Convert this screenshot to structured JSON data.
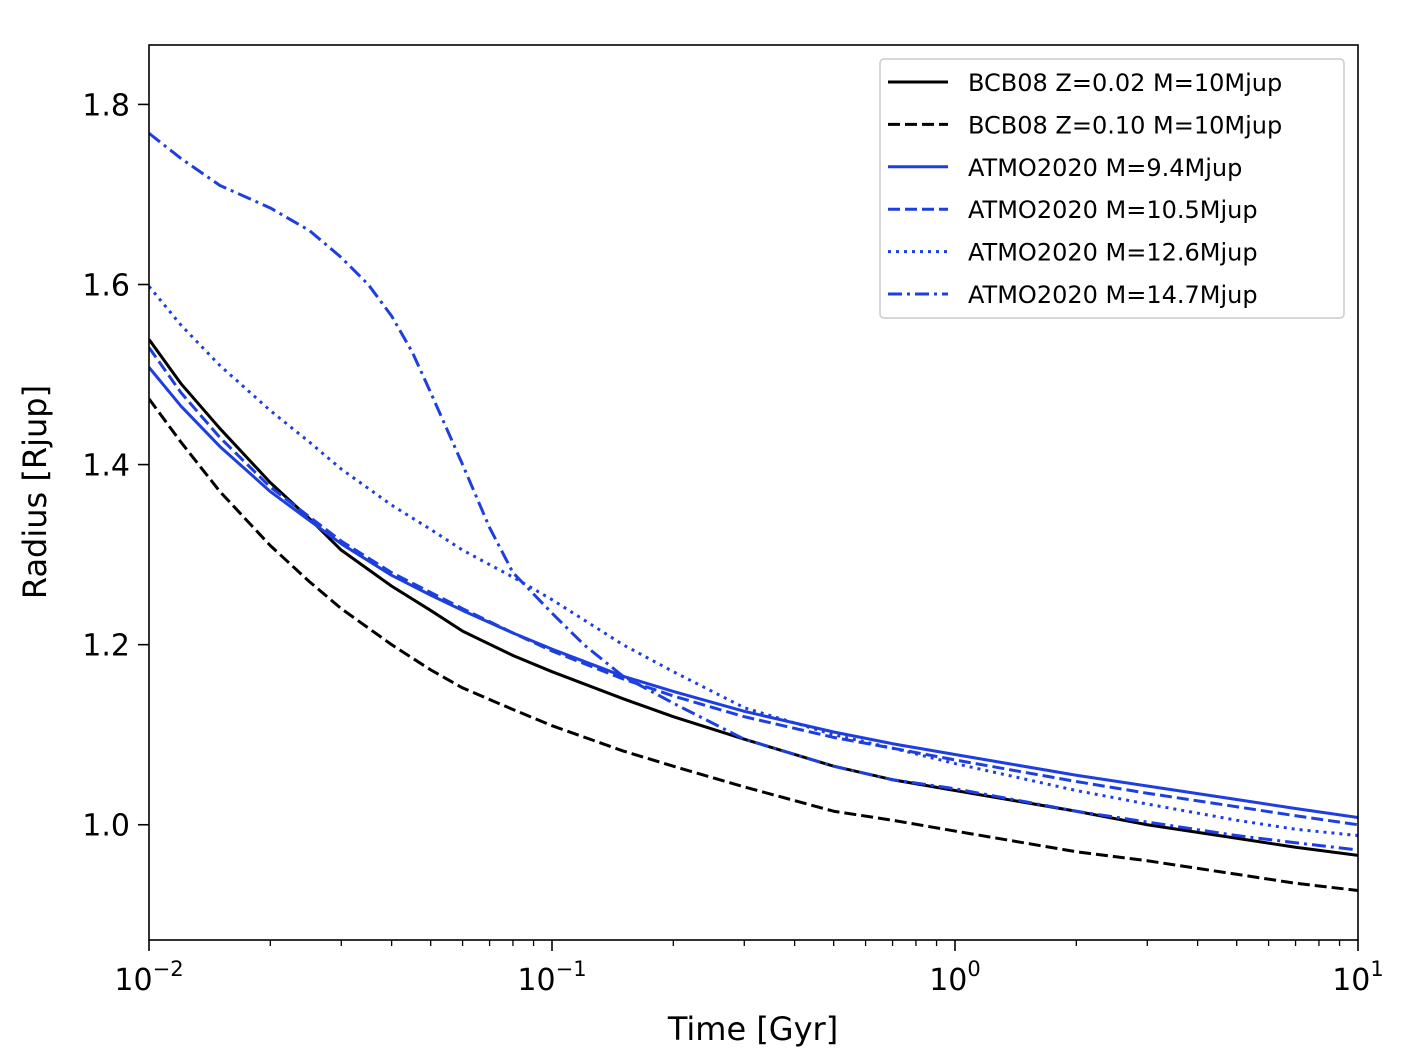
{
  "chart_data": {
    "type": "line",
    "title": "",
    "xlabel": "Time [Gyr]",
    "ylabel": "Radius [Rjup]",
    "xscale": "log",
    "xlim": [
      0.01,
      10
    ],
    "ylim": [
      0.872,
      1.866
    ],
    "grid": false,
    "legend_position": "top-right",
    "x_ticks": [
      {
        "value": 0.01,
        "base": "10",
        "exp": "−2"
      },
      {
        "value": 0.1,
        "base": "10",
        "exp": "−1"
      },
      {
        "value": 1,
        "base": "10",
        "exp": "0"
      },
      {
        "value": 10,
        "base": "10",
        "exp": "1"
      }
    ],
    "y_ticks": [
      {
        "value": 1.0,
        "label": "1.0"
      },
      {
        "value": 1.2,
        "label": "1.2"
      },
      {
        "value": 1.4,
        "label": "1.4"
      },
      {
        "value": 1.6,
        "label": "1.6"
      },
      {
        "value": 1.8,
        "label": "1.8"
      }
    ],
    "series": [
      {
        "name": "BCB08 Z=0.02 M=10Mjup",
        "color": "#000000",
        "style": "solid",
        "x": [
          0.01,
          0.012,
          0.015,
          0.02,
          0.025,
          0.03,
          0.04,
          0.05,
          0.06,
          0.08,
          0.1,
          0.15,
          0.2,
          0.3,
          0.5,
          0.7,
          1.0,
          2.0,
          3.0,
          5.0,
          7.0,
          10.0
        ],
        "y": [
          1.539,
          1.49,
          1.44,
          1.38,
          1.34,
          1.305,
          1.265,
          1.238,
          1.215,
          1.188,
          1.17,
          1.14,
          1.12,
          1.095,
          1.065,
          1.05,
          1.038,
          1.015,
          1.0,
          0.985,
          0.975,
          0.966
        ]
      },
      {
        "name": "BCB08 Z=0.10 M=10Mjup",
        "color": "#000000",
        "style": "dashed",
        "x": [
          0.01,
          0.012,
          0.015,
          0.02,
          0.025,
          0.03,
          0.04,
          0.05,
          0.06,
          0.08,
          0.1,
          0.15,
          0.2,
          0.3,
          0.5,
          0.7,
          1.0,
          2.0,
          3.0,
          5.0,
          7.0,
          10.0
        ],
        "y": [
          1.473,
          1.425,
          1.37,
          1.31,
          1.27,
          1.24,
          1.2,
          1.172,
          1.152,
          1.128,
          1.11,
          1.082,
          1.065,
          1.042,
          1.015,
          1.005,
          0.993,
          0.97,
          0.96,
          0.945,
          0.935,
          0.927
        ]
      },
      {
        "name": "ATMO2020 M=9.4Mjup",
        "color": "#1e3fe0",
        "style": "solid",
        "x": [
          0.01,
          0.012,
          0.015,
          0.02,
          0.025,
          0.03,
          0.04,
          0.05,
          0.06,
          0.08,
          0.1,
          0.15,
          0.2,
          0.3,
          0.5,
          0.7,
          1.0,
          2.0,
          3.0,
          5.0,
          7.0,
          10.0
        ],
        "y": [
          1.508,
          1.465,
          1.42,
          1.37,
          1.338,
          1.312,
          1.277,
          1.255,
          1.238,
          1.213,
          1.195,
          1.165,
          1.148,
          1.126,
          1.103,
          1.09,
          1.078,
          1.055,
          1.043,
          1.028,
          1.018,
          1.008
        ]
      },
      {
        "name": "ATMO2020 M=10.5Mjup",
        "color": "#1e3fe0",
        "style": "dashed",
        "x": [
          0.01,
          0.012,
          0.015,
          0.02,
          0.025,
          0.03,
          0.04,
          0.05,
          0.06,
          0.08,
          0.1,
          0.15,
          0.2,
          0.3,
          0.5,
          0.7,
          1.0,
          2.0,
          3.0,
          5.0,
          7.0,
          10.0
        ],
        "y": [
          1.53,
          1.48,
          1.43,
          1.375,
          1.342,
          1.315,
          1.28,
          1.258,
          1.24,
          1.213,
          1.193,
          1.162,
          1.143,
          1.12,
          1.097,
          1.085,
          1.072,
          1.048,
          1.035,
          1.02,
          1.01,
          1.0
        ]
      },
      {
        "name": "ATMO2020 M=12.6Mjup",
        "color": "#1e3fe0",
        "style": "dotted",
        "x": [
          0.01,
          0.012,
          0.015,
          0.02,
          0.025,
          0.03,
          0.04,
          0.05,
          0.06,
          0.08,
          0.1,
          0.15,
          0.2,
          0.3,
          0.5,
          0.7,
          1.0,
          2.0,
          3.0,
          5.0,
          7.0,
          10.0
        ],
        "y": [
          1.598,
          1.555,
          1.51,
          1.46,
          1.425,
          1.395,
          1.355,
          1.328,
          1.305,
          1.275,
          1.25,
          1.2,
          1.17,
          1.13,
          1.1,
          1.085,
          1.068,
          1.038,
          1.023,
          1.005,
          0.995,
          0.988
        ]
      },
      {
        "name": "ATMO2020 M=14.7Mjup",
        "color": "#1e3fe0",
        "style": "dashdot",
        "x": [
          0.01,
          0.012,
          0.015,
          0.02,
          0.025,
          0.03,
          0.035,
          0.04,
          0.045,
          0.05,
          0.06,
          0.07,
          0.08,
          0.1,
          0.12,
          0.15,
          0.2,
          0.3,
          0.5,
          0.7,
          1.0,
          2.0,
          3.0,
          5.0,
          7.0,
          10.0
        ],
        "y": [
          1.768,
          1.74,
          1.71,
          1.685,
          1.66,
          1.63,
          1.6,
          1.565,
          1.525,
          1.48,
          1.4,
          1.33,
          1.28,
          1.235,
          1.2,
          1.165,
          1.135,
          1.095,
          1.065,
          1.05,
          1.04,
          1.015,
          1.003,
          0.988,
          0.98,
          0.972
        ]
      }
    ]
  }
}
